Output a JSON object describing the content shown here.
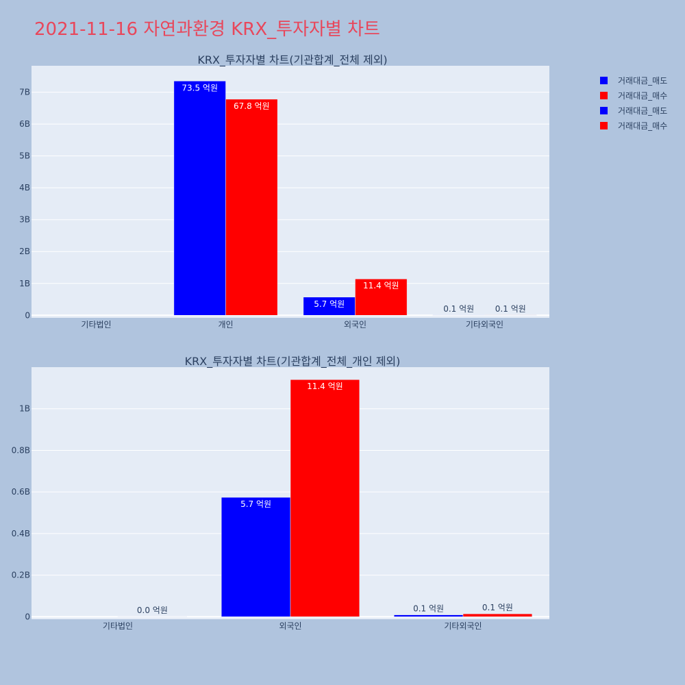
{
  "title": "2021-11-16 자연과환경 KRX_투자자별 차트",
  "legend": [
    {
      "label": "거래대금_매도",
      "color": "#0000ff"
    },
    {
      "label": "거래대금_매수",
      "color": "#ff0000"
    },
    {
      "label": "거래대금_매도",
      "color": "#0000ff"
    },
    {
      "label": "거래대금_매수",
      "color": "#ff0000"
    }
  ],
  "chart_data": [
    {
      "type": "bar",
      "title": "KRX_투자자별 차트(기관합계_전체 제외)",
      "categories": [
        "기타법인",
        "개인",
        "외국인",
        "기타외국인"
      ],
      "series": [
        {
          "name": "거래대금_매도",
          "color": "#0000ff",
          "values": [
            0,
            7350000000,
            570000000,
            10000000
          ],
          "labels": [
            "",
            "73.5 억원",
            "5.7 억원",
            "0.1 억원"
          ]
        },
        {
          "name": "거래대금_매수",
          "color": "#ff0000",
          "values": [
            0,
            6780000000,
            1140000000,
            10000000
          ],
          "labels": [
            "",
            "67.8 억원",
            "11.4 억원",
            "0.1 억원"
          ]
        }
      ],
      "yticks": [
        0,
        1000000000,
        2000000000,
        3000000000,
        4000000000,
        5000000000,
        6000000000,
        7000000000
      ],
      "yticklabels": [
        "0",
        "1B",
        "2B",
        "3B",
        "4B",
        "5B",
        "6B",
        "7B"
      ],
      "ylim": [
        -80000000,
        7830000000
      ]
    },
    {
      "type": "bar",
      "title": "KRX_투자자별 차트(기관합계_전체_개인 제외)",
      "categories": [
        "기타법인",
        "외국인",
        "기타외국인"
      ],
      "series": [
        {
          "name": "거래대금_매도",
          "color": "#0000ff",
          "values": [
            0,
            574000000,
            9000000
          ],
          "labels": [
            "",
            "5.7 억원",
            "0.1 억원"
          ]
        },
        {
          "name": "거래대금_매수",
          "color": "#ff0000",
          "values": [
            1000000,
            1140000000,
            14000000
          ],
          "labels": [
            "0.0 억원",
            "11.4 억원",
            "0.1 억원"
          ]
        }
      ],
      "yticks": [
        0,
        200000000,
        400000000,
        600000000,
        800000000,
        1000000000
      ],
      "yticklabels": [
        "0",
        "0.2B",
        "0.4B",
        "0.6B",
        "0.8B",
        "1B"
      ],
      "ylim": [
        -12000000,
        1200000000
      ]
    }
  ]
}
